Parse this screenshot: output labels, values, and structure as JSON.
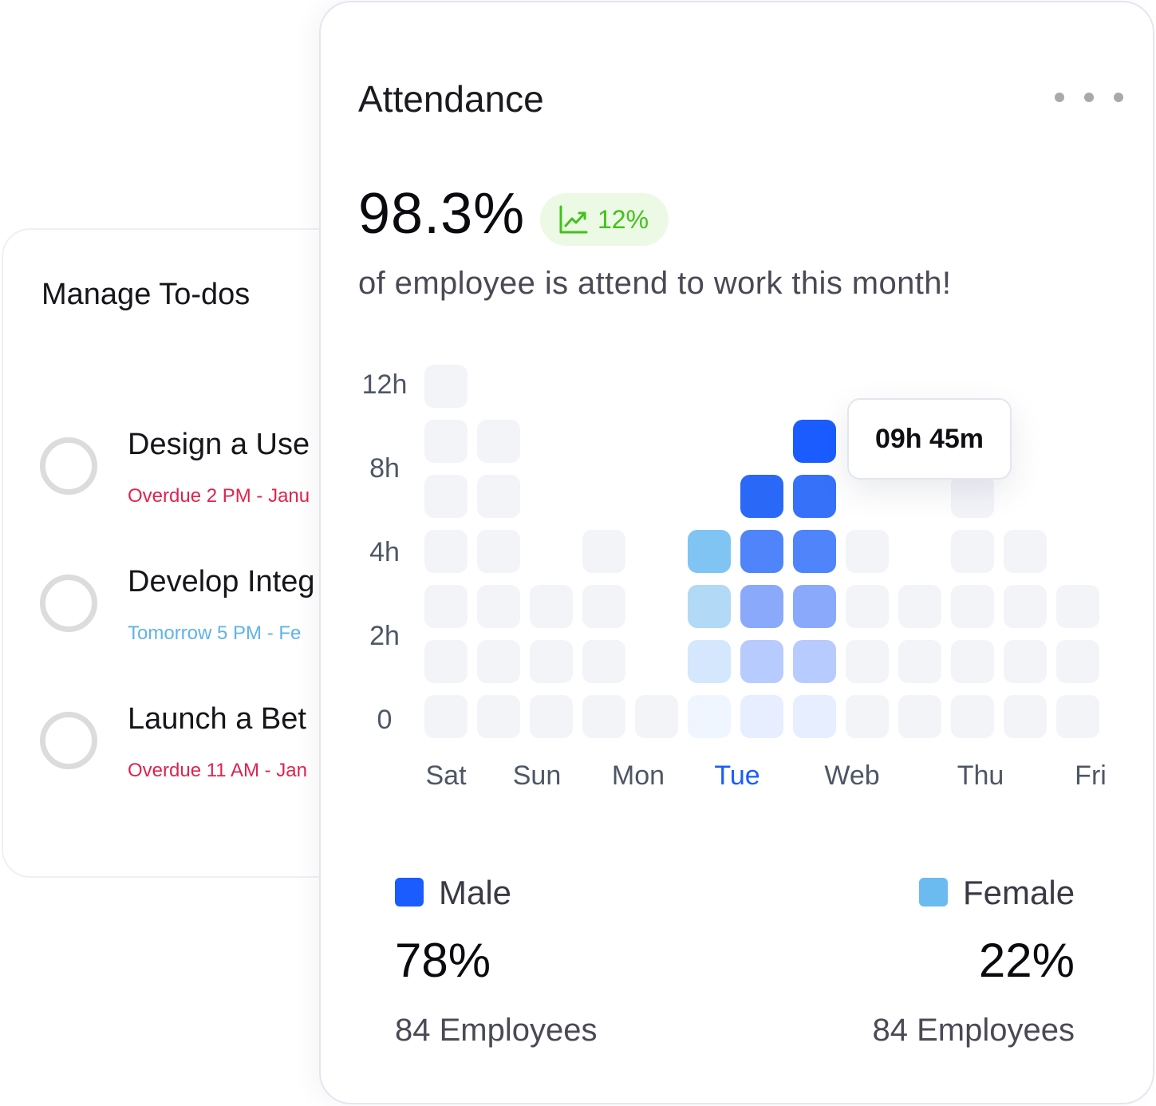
{
  "todos": {
    "title": "Manage To-dos",
    "items": [
      {
        "name": "Design a Use",
        "due": "Overdue 2 PM - Janu",
        "status": "overdue"
      },
      {
        "name": "Develop Integ",
        "due": "Tomorrow 5 PM - Fe",
        "status": "upcoming"
      },
      {
        "name": "Launch a Bet",
        "due": "Overdue 11 AM - Jan",
        "status": "overdue"
      }
    ]
  },
  "attendance": {
    "title": "Attendance",
    "more_icon": "more-horizontal-icon",
    "value": "98.3%",
    "trend": {
      "icon": "trending-up-icon",
      "value": "12%",
      "color": "#41c21a"
    },
    "subtitle": "of employee is attend to work this month!",
    "tooltip": "09h 45m",
    "legend": {
      "male": {
        "label": "Male",
        "color": "#1a5cff",
        "percent": "78%",
        "count": "84 Employees"
      },
      "female": {
        "label": "Female",
        "color": "#6cbbf0",
        "percent": "22%",
        "count": "84 Employees"
      }
    }
  },
  "chart_data": {
    "type": "heatmap",
    "y_ticks": [
      "12h",
      "8h",
      "4h",
      "2h",
      "0"
    ],
    "x_labels": [
      "Sat",
      "Sun",
      "Mon",
      "Tue",
      "Web",
      "Thu",
      "Fri"
    ],
    "active_label": "Tue",
    "columns": [
      {
        "levels": 7,
        "color": "#f3f4f8"
      },
      {
        "levels": 6,
        "color": "#f3f4f8"
      },
      {
        "levels": 3,
        "color": "#f3f4f8"
      },
      {
        "levels": 4,
        "color": "#f3f4f8"
      },
      {
        "levels": 1,
        "color": "#f3f4f8"
      },
      {
        "levels": 4,
        "colors": [
          "#f0f6ff",
          "#d4e7fc",
          "#b2d9f6",
          "#80c4f3"
        ]
      },
      {
        "levels": 5,
        "colors": [
          "#e7eeff",
          "#b8cbff",
          "#8aa9fb",
          "#4f84fb",
          "#2a68f8"
        ]
      },
      {
        "levels": 6,
        "colors": [
          "#e7eeff",
          "#b8cbff",
          "#8aa9fb",
          "#4f84fb",
          "#3671fa",
          "#1a5cff"
        ]
      },
      {
        "levels": 4,
        "color": "#f3f4f8"
      },
      {
        "levels": 3,
        "color": "#f3f4f8"
      },
      {
        "levels": 5,
        "color": "#f3f4f8"
      },
      {
        "levels": 4,
        "color": "#f3f4f8"
      },
      {
        "levels": 3,
        "color": "#f3f4f8"
      }
    ],
    "highlight": {
      "column": 7,
      "level": 6,
      "label": "09h 45m"
    }
  }
}
